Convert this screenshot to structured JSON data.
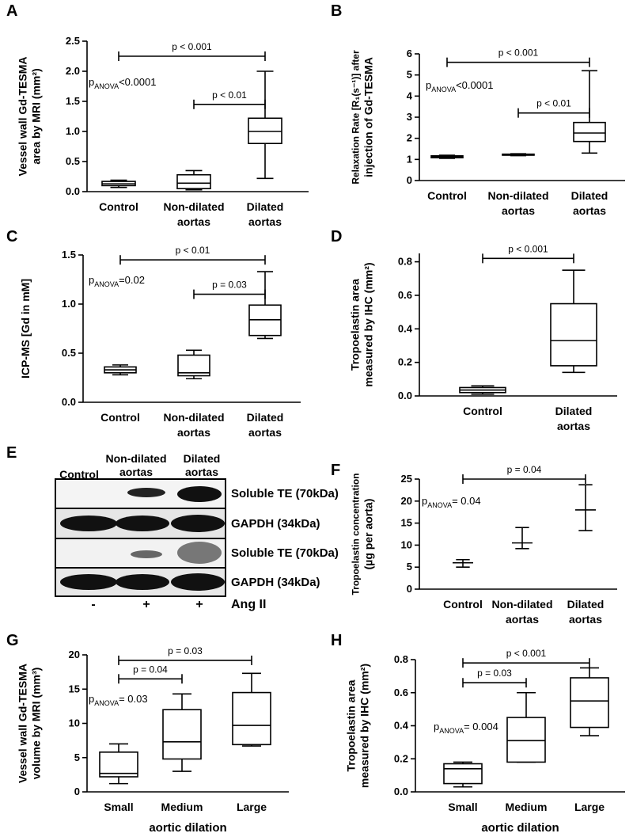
{
  "chart_data": [
    {
      "type": "box",
      "panel": "A",
      "ylabel": [
        "Vessel wall Gd-TESMA",
        "area by MRI (mm²)"
      ],
      "categories": [
        "Control",
        "Non-dilated aortas",
        "Dilated aortas"
      ],
      "boxes": [
        {
          "min": 0.07,
          "q1": 0.1,
          "median": 0.13,
          "q3": 0.17,
          "max": 0.19
        },
        {
          "min": 0.03,
          "q1": 0.05,
          "median": 0.14,
          "q3": 0.28,
          "max": 0.35
        },
        {
          "min": 0.22,
          "q1": 0.8,
          "median": 1.0,
          "q3": 1.22,
          "max": 2.0
        }
      ],
      "ylim": [
        0,
        2.5
      ],
      "yticks": [
        {
          "value": 0,
          "label": "0.0"
        },
        0.5,
        {
          "value": 1,
          "label": "1.0"
        },
        1.5,
        {
          "value": 2,
          "label": "2.0"
        },
        2.5
      ],
      "brackets": [
        "p < 0.001",
        "p < 0.01"
      ],
      "anova": [
        "p",
        "ANOVA",
        "<0.0001"
      ]
    },
    {
      "type": "box",
      "panel": "B",
      "ylabel": [
        "Relaxation Rate [R₁(s⁻¹)] after",
        "injection of Gd-TESMA"
      ],
      "categories": [
        "Control",
        "Non-dilated aortas",
        "Dilated aortas"
      ],
      "boxes": [
        {
          "min": 1.05,
          "q1": 1.08,
          "median": 1.12,
          "q3": 1.17,
          "max": 1.2
        },
        {
          "min": 1.18,
          "q1": 1.2,
          "median": 1.22,
          "q3": 1.25,
          "max": 1.27
        },
        {
          "min": 1.3,
          "q1": 1.85,
          "median": 2.25,
          "q3": 2.75,
          "max": 5.2
        }
      ],
      "ylim": [
        0,
        6
      ],
      "yticks": [
        0,
        1,
        2,
        3,
        4,
        5,
        6
      ],
      "brackets": [
        "p < 0.001",
        "p < 0.01"
      ],
      "anova": [
        "p",
        "ANOVA",
        "<0.0001"
      ]
    },
    {
      "type": "box",
      "panel": "C",
      "ylabel": [
        "ICP-MS [Gd in mM]"
      ],
      "categories": [
        "Control",
        "Non-dilated aortas",
        "Dilated aortas"
      ],
      "boxes": [
        {
          "min": 0.28,
          "q1": 0.3,
          "median": 0.33,
          "q3": 0.36,
          "max": 0.38
        },
        {
          "min": 0.24,
          "q1": 0.27,
          "median": 0.3,
          "q3": 0.48,
          "max": 0.53
        },
        {
          "min": 0.65,
          "q1": 0.68,
          "median": 0.84,
          "q3": 0.99,
          "max": 1.33
        }
      ],
      "ylim": [
        0,
        1.5
      ],
      "yticks": [
        {
          "value": 0,
          "label": "0.0"
        },
        0.5,
        {
          "value": 1,
          "label": "1.0"
        },
        1.5
      ],
      "brackets": [
        "p < 0.01",
        "p = 0.03"
      ],
      "anova": [
        "p",
        "ANOVA",
        "=0.02"
      ]
    },
    {
      "type": "box",
      "panel": "D",
      "ylabel": [
        "Tropoelastin area",
        "measured by IHC (mm²)"
      ],
      "categories": [
        "Control",
        "Dilated aortas"
      ],
      "boxes": [
        {
          "min": 0.01,
          "q1": 0.02,
          "median": 0.035,
          "q3": 0.05,
          "max": 0.06
        },
        {
          "min": 0.14,
          "q1": 0.18,
          "median": 0.33,
          "q3": 0.55,
          "max": 0.75
        }
      ],
      "ylim": [
        0,
        0.85
      ],
      "yticks": [
        {
          "value": 0,
          "label": "0.0"
        },
        0.2,
        0.4,
        0.6,
        0.8
      ],
      "brackets": [
        "p < 0.001"
      ]
    },
    {
      "type": "errorbar",
      "panel": "F",
      "ylabel": [
        "Tropoelastin concentration",
        "(µg per aorta)"
      ],
      "categories": [
        "Control",
        "Non-dilated aortas",
        "Dilated aortas"
      ],
      "values": [
        6,
        10.5,
        18
      ],
      "lower": [
        5,
        9.2,
        13.3
      ],
      "upper": [
        6.7,
        14,
        23.7
      ],
      "ylim": [
        0,
        25
      ],
      "yticks": [
        0,
        5,
        10,
        15,
        20,
        25
      ],
      "brackets": [
        "p = 0.04"
      ],
      "anova": [
        "p",
        "ANOVA",
        "= 0.04"
      ]
    },
    {
      "type": "box",
      "panel": "G",
      "ylabel": [
        "Vessel wall Gd-TESMA",
        "volume by MRI (mm³)"
      ],
      "xlabel": "aortic dilation",
      "categories": [
        "Small",
        "Medium",
        "Large"
      ],
      "boxes": [
        {
          "min": 1.2,
          "q1": 2.2,
          "median": 2.7,
          "q3": 5.8,
          "max": 7.0
        },
        {
          "min": 3.0,
          "q1": 4.8,
          "median": 7.3,
          "q3": 12.0,
          "max": 14.3
        },
        {
          "min": 6.7,
          "q1": 6.9,
          "median": 9.7,
          "q3": 14.5,
          "max": 17.3
        }
      ],
      "ylim": [
        0,
        20
      ],
      "yticks": [
        0,
        5,
        10,
        15,
        20
      ],
      "brackets": [
        "p = 0.04",
        "p = 0.03"
      ],
      "anova": [
        "p",
        "ANOVA",
        "= 0.03"
      ]
    },
    {
      "type": "box",
      "panel": "H",
      "ylabel": [
        "Tropoelastin area",
        "measured by IHC (mm²)"
      ],
      "xlabel": "aortic dilation",
      "categories": [
        "Small",
        "Medium",
        "Large"
      ],
      "boxes": [
        {
          "min": 0.03,
          "q1": 0.05,
          "median": 0.14,
          "q3": 0.17,
          "max": 0.18
        },
        {
          "min": 0.18,
          "q1": 0.18,
          "median": 0.31,
          "q3": 0.45,
          "max": 0.6
        },
        {
          "min": 0.34,
          "q1": 0.39,
          "median": 0.55,
          "q3": 0.69,
          "max": 0.75
        }
      ],
      "ylim": [
        0,
        0.8
      ],
      "yticks": [
        {
          "value": 0,
          "label": "0.0"
        },
        0.2,
        0.4,
        0.6,
        0.8
      ],
      "brackets": [
        "p = 0.03",
        "p < 0.001"
      ],
      "anova": [
        "p",
        "ANOVA",
        "= 0.004"
      ]
    }
  ],
  "blot": {
    "panel": "E",
    "lanes": [
      "Control",
      "Non-dilated aortas",
      "Dilated aortas"
    ],
    "rows": [
      "Soluble TE (70kDa)",
      "GAPDH (34kDa)",
      "Soluble TE (70kDa)",
      "GAPDH (34kDa)"
    ],
    "treatment": [
      "-",
      "+",
      "+"
    ],
    "treatment_label": "Ang II"
  }
}
